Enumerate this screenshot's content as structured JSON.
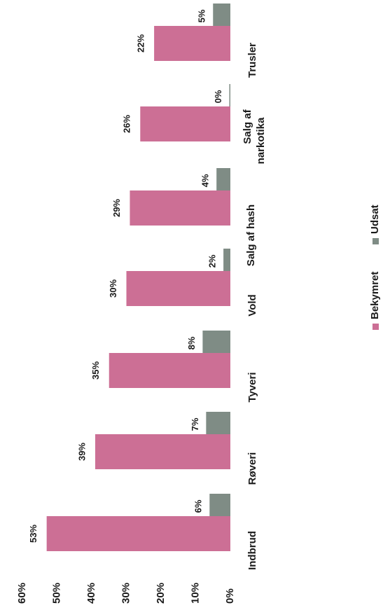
{
  "chart_data": {
    "type": "bar",
    "orientation": "rotated-90-clockwise",
    "categories": [
      "Indbrud",
      "Røveri",
      "Tyveri",
      "Vold",
      "Salg af hash",
      "Salg af narkotika",
      "Trusler"
    ],
    "series": [
      {
        "name": "Bekymret",
        "values": [
          53,
          39,
          35,
          30,
          29,
          26,
          22
        ],
        "color": "#cc6f95"
      },
      {
        "name": "Udsat",
        "values": [
          6,
          7,
          8,
          2,
          4,
          0,
          5
        ],
        "color": "#7f8c85"
      }
    ],
    "value_labels": {
      "Bekymret": [
        "53%",
        "39%",
        "35%",
        "30%",
        "29%",
        "26%",
        "22%"
      ],
      "Udsat": [
        "6%",
        "7%",
        "8%",
        "2%",
        "4%",
        "0%",
        "5%"
      ]
    },
    "ylim": [
      0,
      60
    ],
    "yticks": [
      "0%",
      "10%",
      "20%",
      "30%",
      "40%",
      "50%",
      "60%"
    ],
    "grid": false,
    "legend_position": "bottom",
    "title": "",
    "xlabel": "",
    "ylabel": ""
  }
}
